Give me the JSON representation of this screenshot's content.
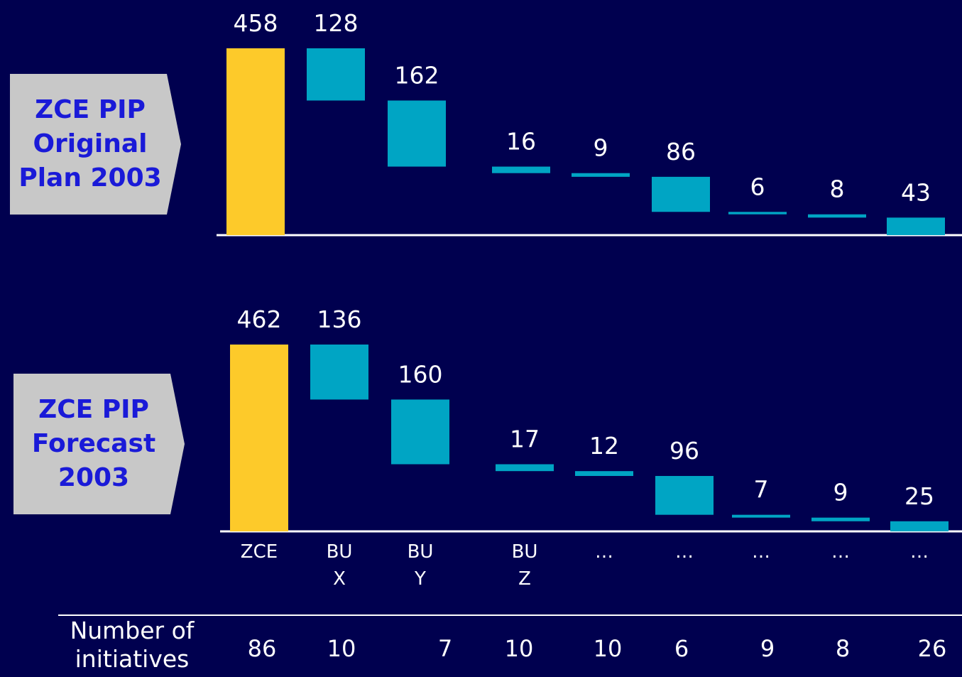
{
  "chart_data": [
    {
      "type": "waterfall",
      "label": "ZCE PIP\nOriginal\nPlan 2003",
      "values": [
        458,
        128,
        162,
        16,
        9,
        86,
        6,
        8,
        43
      ],
      "total_color": "#fdca2a",
      "color": "#00a5c4"
    },
    {
      "type": "waterfall",
      "label": "ZCE PIP\nForecast\n2003",
      "categories": [
        "ZCE",
        "BU\nX",
        "BU\nY",
        "BU\nZ",
        "…",
        "…",
        "…",
        "…",
        "…"
      ],
      "values": [
        462,
        136,
        160,
        17,
        12,
        96,
        7,
        9,
        25
      ],
      "total_color": "#fdca2a",
      "color": "#00a5c4"
    }
  ],
  "table": {
    "label": "Number of\ninitiatives",
    "values": [
      86,
      10,
      7,
      10,
      10,
      6,
      9,
      8,
      26
    ]
  }
}
